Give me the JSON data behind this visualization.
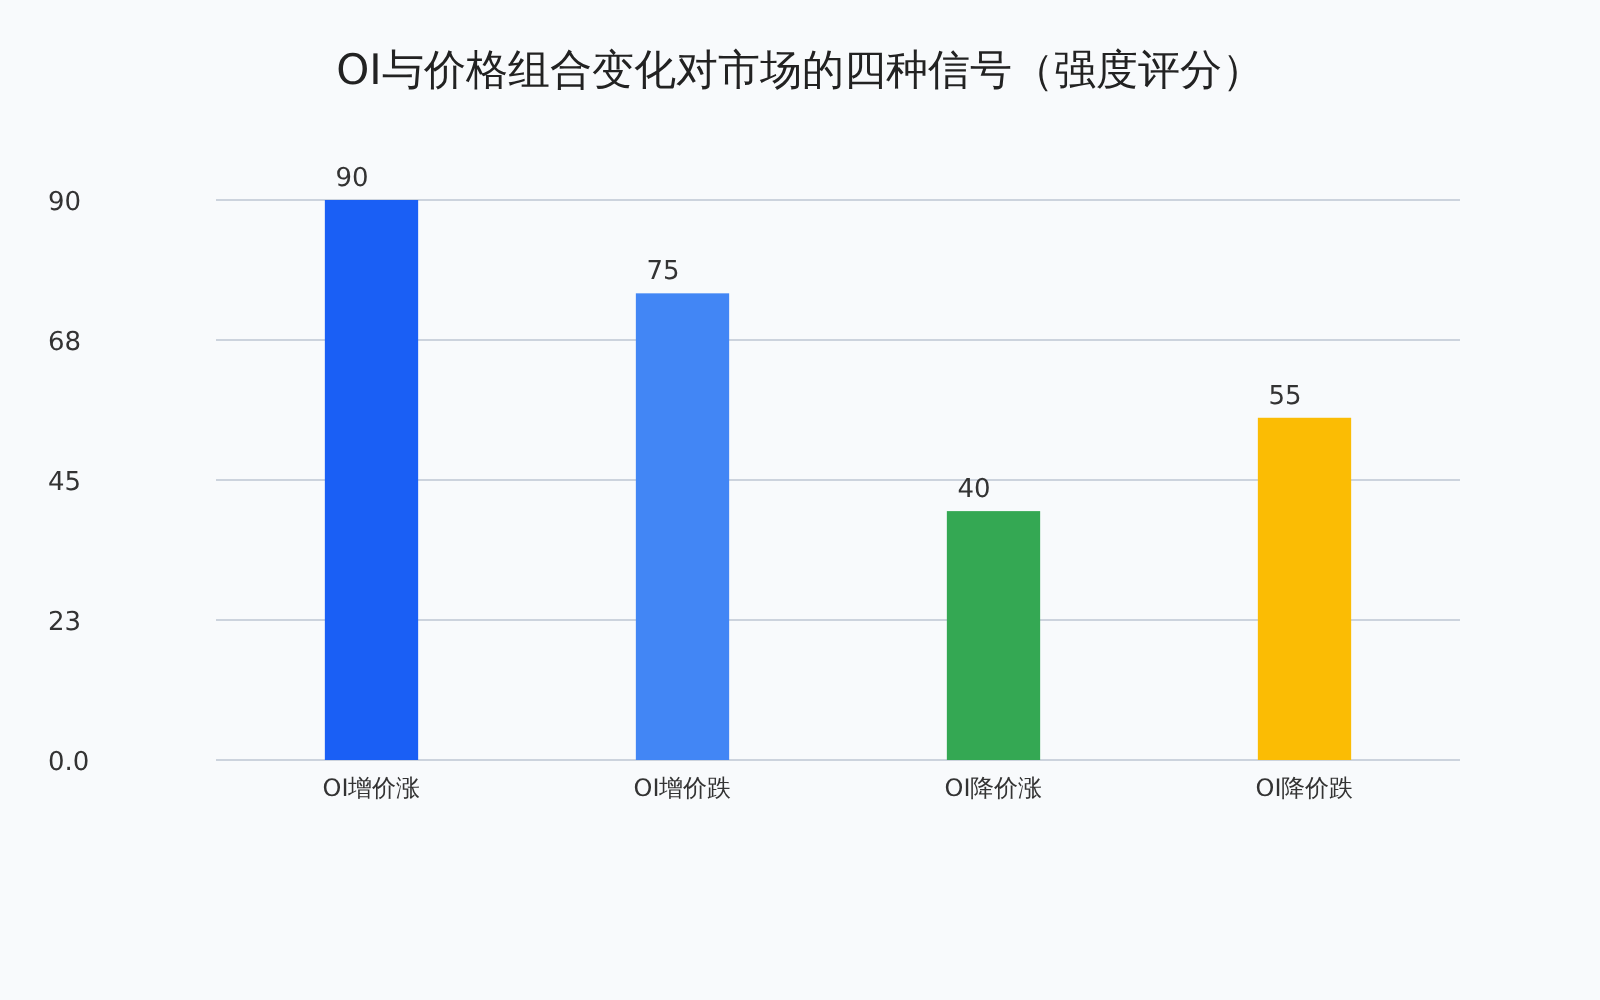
{
  "chart_data": {
    "type": "bar",
    "title": "OI与价格组合变化对市场的四种信号（强度评分）",
    "categories": [
      "OI增价涨",
      "OI增价跌",
      "OI降价涨",
      "OI降价跌"
    ],
    "values": [
      90,
      75,
      40,
      55
    ],
    "colors": [
      "#1a5ff5",
      "#4286f5",
      "#34a853",
      "#fbbc04"
    ],
    "ylim": [
      0,
      90
    ],
    "yticks": [
      {
        "value": 0,
        "label": "0.0"
      },
      {
        "value": 22.5,
        "label": "23"
      },
      45,
      {
        "value": 67.5,
        "label": "68"
      },
      90
    ],
    "grid": "y",
    "data_labels": true
  }
}
